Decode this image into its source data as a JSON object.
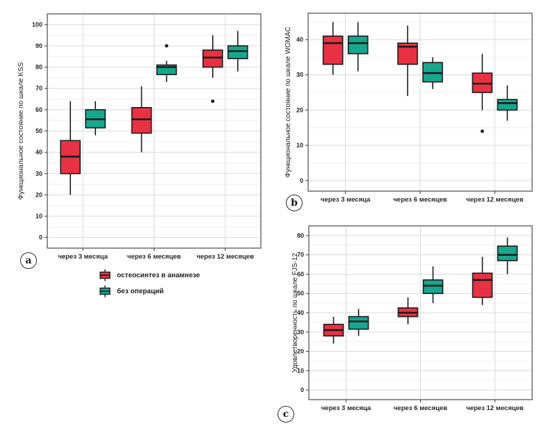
{
  "figure": {
    "background": "#ffffff"
  },
  "colors": {
    "group_red": "#E73243",
    "group_teal": "#16A78E",
    "box_stroke": "#1a1a1a",
    "grid_major": "#d9d9d9",
    "grid_minor": "#efefef",
    "panel_border": "#4a4a4a",
    "text": "#262626"
  },
  "chart_data": [
    {
      "type": "boxplot",
      "panel_label": "a",
      "ylabel": "Функциональное состояние по шкале KSS",
      "ylim": [
        -5,
        105
      ],
      "yticks": [
        0,
        10,
        20,
        30,
        40,
        50,
        60,
        70,
        80,
        90,
        100
      ],
      "grid": "on",
      "categories": [
        "через 3 месяца",
        "через 6 месяцев",
        "через 12 месяцев"
      ],
      "series": [
        {
          "name": "остеосинтез в анамнезе",
          "color": "#E73243",
          "boxes": [
            {
              "min": 20,
              "q1": 30,
              "median": 38,
              "q3": 45.5,
              "max": 64,
              "outliers": []
            },
            {
              "min": 40,
              "q1": 49,
              "median": 55.5,
              "q3": 61,
              "max": 71,
              "outliers": []
            },
            {
              "min": 75,
              "q1": 80,
              "median": 84.5,
              "q3": 88,
              "max": 95,
              "outliers": [
                64
              ]
            }
          ]
        },
        {
          "name": "без операций",
          "color": "#16A78E",
          "boxes": [
            {
              "min": 48,
              "q1": 51.5,
              "median": 55.5,
              "q3": 60,
              "max": 64,
              "outliers": []
            },
            {
              "min": 73,
              "q1": 76.5,
              "median": 80,
              "q3": 81,
              "max": 83,
              "outliers": [
                90
              ]
            },
            {
              "min": 78,
              "q1": 84,
              "median": 87.5,
              "q3": 90,
              "max": 97,
              "outliers": []
            }
          ]
        }
      ]
    },
    {
      "type": "boxplot",
      "panel_label": "b",
      "ylabel": "Функциональное состояние по шкале WOMAC",
      "ylim": [
        -3,
        47.5
      ],
      "yticks": [
        0,
        10,
        20,
        30,
        40
      ],
      "grid": "on",
      "categories": [
        "через 3 месяца",
        "через 6 месяцев",
        "через 12 месяцев"
      ],
      "series": [
        {
          "name": "остеосинтез в анамнезе",
          "color": "#E73243",
          "boxes": [
            {
              "min": 30,
              "q1": 33,
              "median": 39,
              "q3": 41,
              "max": 45,
              "outliers": []
            },
            {
              "min": 24,
              "q1": 33,
              "median": 38,
              "q3": 39,
              "max": 44,
              "outliers": []
            },
            {
              "min": 20,
              "q1": 25,
              "median": 27.5,
              "q3": 30.5,
              "max": 36,
              "outliers": [
                14
              ]
            }
          ]
        },
        {
          "name": "без операций",
          "color": "#16A78E",
          "boxes": [
            {
              "min": 31,
              "q1": 36,
              "median": 39,
              "q3": 41,
              "max": 45,
              "outliers": []
            },
            {
              "min": 26,
              "q1": 28,
              "median": 30.5,
              "q3": 33.5,
              "max": 35,
              "outliers": []
            },
            {
              "min": 17,
              "q1": 20,
              "median": 22,
              "q3": 23,
              "max": 27,
              "outliers": []
            }
          ]
        }
      ]
    },
    {
      "type": "boxplot",
      "panel_label": "c",
      "ylabel": "Удовлетворенность по шкале FJS-12",
      "ylim": [
        -5,
        85
      ],
      "yticks": [
        0,
        10,
        20,
        30,
        40,
        50,
        60,
        70,
        80
      ],
      "grid": "on",
      "categories": [
        "через 3 месяца",
        "через 6 месяцев",
        "через 12 месяцев"
      ],
      "series": [
        {
          "name": "остеосинтез в анамнезе",
          "color": "#E73243",
          "boxes": [
            {
              "min": 24,
              "q1": 28,
              "median": 31,
              "q3": 34,
              "max": 38,
              "outliers": []
            },
            {
              "min": 34,
              "q1": 38,
              "median": 40,
              "q3": 42.5,
              "max": 48,
              "outliers": []
            },
            {
              "min": 44,
              "q1": 48,
              "median": 57,
              "q3": 60.5,
              "max": 69,
              "outliers": []
            }
          ]
        },
        {
          "name": "без операций",
          "color": "#16A78E",
          "boxes": [
            {
              "min": 28,
              "q1": 31.5,
              "median": 35.5,
              "q3": 38,
              "max": 42,
              "outliers": []
            },
            {
              "min": 45,
              "q1": 50,
              "median": 54,
              "q3": 57,
              "max": 64,
              "outliers": []
            },
            {
              "min": 60,
              "q1": 67,
              "median": 70,
              "q3": 74.5,
              "max": 79,
              "outliers": []
            }
          ]
        }
      ]
    }
  ],
  "legend": {
    "position": "below-panel-a"
  }
}
